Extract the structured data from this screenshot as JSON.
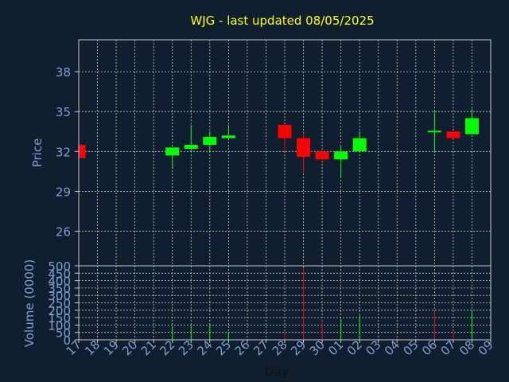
{
  "title": "WJG - last updated 08/05/2025",
  "colors": {
    "background": "#0f1f30",
    "title": "#ffff00",
    "axis_text": "#7f9fcf",
    "grid": "#c8c8c8",
    "up": "#00ff00",
    "down": "#ff0000"
  },
  "chart_data": [
    {
      "type": "candlestick",
      "ylabel": "Price",
      "ylim": [
        23.4,
        40.4
      ],
      "yticks": [
        26,
        29,
        32,
        35,
        38
      ],
      "grid": true,
      "candles": [
        {
          "day": "17",
          "open": 32.5,
          "high": 32.5,
          "low": 31.5,
          "close": 31.5
        },
        {
          "day": "22",
          "open": 31.7,
          "high": 32.3,
          "low": 30.7,
          "close": 32.3
        },
        {
          "day": "23",
          "open": 32.2,
          "high": 34.0,
          "low": 32.0,
          "close": 32.5
        },
        {
          "day": "24",
          "open": 32.5,
          "high": 33.5,
          "low": 32.0,
          "close": 33.1
        },
        {
          "day": "25",
          "open": 33.0,
          "high": 34.0,
          "low": 33.0,
          "close": 33.2
        },
        {
          "day": "28",
          "open": 34.0,
          "high": 34.0,
          "low": 32.0,
          "close": 33.0
        },
        {
          "day": "29",
          "open": 33.0,
          "high": 33.4,
          "low": 30.4,
          "close": 31.6
        },
        {
          "day": "30",
          "open": 32.0,
          "high": 32.0,
          "low": 31.4,
          "close": 31.4
        },
        {
          "day": "01",
          "open": 31.4,
          "high": 32.4,
          "low": 30.1,
          "close": 32.0
        },
        {
          "day": "02",
          "open": 32.0,
          "high": 33.5,
          "low": 32.0,
          "close": 33.0
        },
        {
          "day": "06",
          "open": 33.5,
          "high": 35.0,
          "low": 32.0,
          "close": 33.5
        },
        {
          "day": "07",
          "open": 33.5,
          "high": 33.5,
          "low": 33.0,
          "close": 33.0
        },
        {
          "day": "08",
          "open": 33.3,
          "high": 35.2,
          "low": 33.3,
          "close": 34.5
        }
      ]
    },
    {
      "type": "bar",
      "xlabel": "Day",
      "ylabel": "Volume (0000)",
      "ylim": [
        0,
        500
      ],
      "yticks": [
        0,
        50,
        100,
        150,
        200,
        250,
        300,
        350,
        400,
        450,
        500
      ],
      "grid": true,
      "categories": [
        "17",
        "18",
        "19",
        "20",
        "21",
        "22",
        "23",
        "24",
        "25",
        "26",
        "27",
        "28",
        "29",
        "30",
        "01",
        "02",
        "03",
        "04",
        "05",
        "06",
        "07",
        "08",
        "09"
      ],
      "volumes": [
        {
          "day": "22",
          "value": 90,
          "direction": "up"
        },
        {
          "day": "23",
          "value": 95,
          "direction": "up"
        },
        {
          "day": "24",
          "value": 110,
          "direction": "up"
        },
        {
          "day": "25",
          "value": 55,
          "direction": "up"
        },
        {
          "day": "28",
          "value": 45,
          "direction": "down"
        },
        {
          "day": "29",
          "value": 490,
          "direction": "down"
        },
        {
          "day": "30",
          "value": 130,
          "direction": "down"
        },
        {
          "day": "01",
          "value": 140,
          "direction": "up"
        },
        {
          "day": "02",
          "value": 165,
          "direction": "up"
        },
        {
          "day": "06",
          "value": 195,
          "direction": "down"
        },
        {
          "day": "07",
          "value": 50,
          "direction": "down"
        },
        {
          "day": "08",
          "value": 195,
          "direction": "up"
        }
      ]
    }
  ]
}
